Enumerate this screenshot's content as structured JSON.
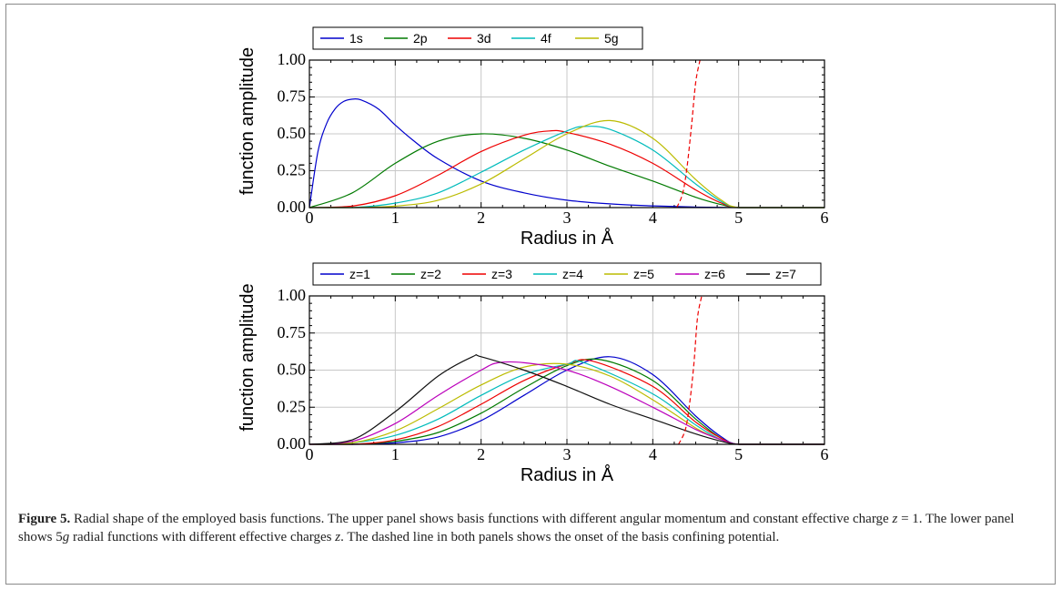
{
  "caption": {
    "label": "Figure 5.",
    "part1": "Radial shape of the employed basis functions. The upper panel shows basis functions with different angular momentum and constant effective charge ",
    "z_var": "z",
    "part2": " = 1. The lower panel shows 5",
    "g_var": "g",
    "part3": " radial functions with different effective charges ",
    "z_var2": "z",
    "part4": ". The dashed line in both panels shows the onset of the basis confining potential."
  },
  "chart_data": [
    {
      "type": "line",
      "xlabel": "Radius in Å",
      "ylabel": "function amplitude",
      "xlim": [
        0,
        6
      ],
      "ylim": [
        0,
        1
      ],
      "xticks": [
        "0",
        "1",
        "2",
        "3",
        "4",
        "5",
        "6"
      ],
      "yticks": [
        "0.00",
        "0.25",
        "0.50",
        "0.75",
        "1.00"
      ],
      "grid": true,
      "legend_position": "top, above plot",
      "series": [
        {
          "name": "1s",
          "color": "#0000cc",
          "x": [
            0,
            0.1,
            0.2,
            0.3,
            0.4,
            0.5,
            0.6,
            0.8,
            1.0,
            1.2,
            1.5,
            2.0,
            2.5,
            3.0,
            3.5,
            4.0,
            4.5,
            5.0,
            5.5,
            6.0
          ],
          "y": [
            0,
            0.38,
            0.57,
            0.67,
            0.72,
            0.735,
            0.73,
            0.67,
            0.56,
            0.46,
            0.33,
            0.18,
            0.1,
            0.05,
            0.025,
            0.012,
            0.004,
            0,
            0,
            0
          ]
        },
        {
          "name": "2p",
          "color": "#007a00",
          "x": [
            0,
            0.5,
            1.0,
            1.5,
            2.0,
            2.5,
            3.0,
            3.5,
            4.0,
            4.5,
            4.8,
            5.0,
            5.5,
            6.0
          ],
          "y": [
            0,
            0.1,
            0.3,
            0.45,
            0.5,
            0.47,
            0.39,
            0.28,
            0.18,
            0.07,
            0.02,
            0,
            0,
            0
          ]
        },
        {
          "name": "3d",
          "color": "#ee0000",
          "x": [
            0,
            0.5,
            1.0,
            1.5,
            2.0,
            2.5,
            2.8,
            3.0,
            3.5,
            4.0,
            4.5,
            4.8,
            5.0,
            5.5,
            6.0
          ],
          "y": [
            0,
            0.01,
            0.08,
            0.22,
            0.38,
            0.49,
            0.52,
            0.51,
            0.43,
            0.3,
            0.12,
            0.03,
            0,
            0,
            0
          ]
        },
        {
          "name": "4f",
          "color": "#00bbbb",
          "x": [
            0,
            0.5,
            1.0,
            1.5,
            2.0,
            2.5,
            3.0,
            3.2,
            3.5,
            4.0,
            4.5,
            4.8,
            5.0,
            5.5,
            6.0
          ],
          "y": [
            0,
            0.0,
            0.03,
            0.1,
            0.24,
            0.39,
            0.52,
            0.55,
            0.53,
            0.39,
            0.16,
            0.04,
            0,
            0,
            0
          ]
        },
        {
          "name": "5g",
          "color": "#bbbb00",
          "x": [
            0,
            0.5,
            1.0,
            1.5,
            2.0,
            2.5,
            3.0,
            3.5,
            4.0,
            4.5,
            4.8,
            5.0,
            5.5,
            6.0
          ],
          "y": [
            0,
            0.0,
            0.01,
            0.05,
            0.16,
            0.33,
            0.5,
            0.59,
            0.47,
            0.19,
            0.05,
            0,
            0,
            0
          ]
        }
      ],
      "dashed_line": {
        "color": "#ee0000",
        "x": [
          4.28,
          4.35,
          4.4,
          4.45,
          4.5,
          4.55
        ],
        "y": [
          0,
          0.1,
          0.28,
          0.55,
          0.85,
          1.0
        ]
      }
    },
    {
      "type": "line",
      "xlabel": "Radius in Å",
      "ylabel": "function amplitude",
      "xlim": [
        0,
        6
      ],
      "ylim": [
        0,
        1
      ],
      "xticks": [
        "0",
        "1",
        "2",
        "3",
        "4",
        "5",
        "6"
      ],
      "yticks": [
        "0.00",
        "0.25",
        "0.50",
        "0.75",
        "1.00"
      ],
      "grid": true,
      "legend_position": "top, above plot",
      "series": [
        {
          "name": "z=1",
          "color": "#0000cc",
          "x": [
            0,
            0.5,
            1.0,
            1.5,
            2.0,
            2.5,
            3.0,
            3.5,
            4.0,
            4.5,
            4.8,
            5.0,
            5.5,
            6.0
          ],
          "y": [
            0,
            0.0,
            0.01,
            0.05,
            0.16,
            0.33,
            0.5,
            0.59,
            0.47,
            0.19,
            0.05,
            0,
            0,
            0
          ]
        },
        {
          "name": "z=2",
          "color": "#007a00",
          "x": [
            0,
            0.5,
            1.0,
            1.5,
            2.0,
            2.5,
            3.0,
            3.4,
            4.0,
            4.5,
            4.8,
            5.0,
            5.5,
            6.0
          ],
          "y": [
            0,
            0.0,
            0.02,
            0.08,
            0.21,
            0.38,
            0.53,
            0.57,
            0.43,
            0.17,
            0.04,
            0,
            0,
            0
          ]
        },
        {
          "name": "z=3",
          "color": "#ee0000",
          "x": [
            0,
            0.5,
            1.0,
            1.5,
            2.0,
            2.5,
            3.0,
            3.3,
            4.0,
            4.5,
            4.8,
            5.0,
            5.5,
            6.0
          ],
          "y": [
            0,
            0.0,
            0.03,
            0.12,
            0.27,
            0.43,
            0.54,
            0.56,
            0.39,
            0.15,
            0.04,
            0,
            0,
            0
          ]
        },
        {
          "name": "z=4",
          "color": "#00bbbb",
          "x": [
            0,
            0.5,
            1.0,
            1.5,
            2.0,
            2.5,
            3.0,
            3.2,
            4.0,
            4.5,
            4.8,
            5.0,
            5.5,
            6.0
          ],
          "y": [
            0,
            0.01,
            0.06,
            0.17,
            0.33,
            0.47,
            0.54,
            0.55,
            0.34,
            0.13,
            0.03,
            0,
            0,
            0
          ]
        },
        {
          "name": "z=5",
          "color": "#bbbb00",
          "x": [
            0,
            0.5,
            1.0,
            1.5,
            2.0,
            2.5,
            3.0,
            3.5,
            4.0,
            4.5,
            4.8,
            5.0,
            5.5,
            6.0
          ],
          "y": [
            0,
            0.01,
            0.09,
            0.24,
            0.4,
            0.52,
            0.54,
            0.46,
            0.3,
            0.11,
            0.03,
            0,
            0,
            0
          ]
        },
        {
          "name": "z=6",
          "color": "#bb00bb",
          "x": [
            0,
            0.5,
            1.0,
            1.5,
            2.0,
            2.2,
            2.5,
            3.0,
            3.5,
            4.0,
            4.5,
            4.8,
            5.0,
            5.5,
            6.0
          ],
          "y": [
            0,
            0.02,
            0.14,
            0.33,
            0.5,
            0.55,
            0.55,
            0.5,
            0.39,
            0.25,
            0.1,
            0.03,
            0,
            0,
            0
          ]
        },
        {
          "name": "z=7",
          "color": "#111111",
          "x": [
            0,
            0.5,
            1.0,
            1.5,
            1.9,
            2.0,
            2.5,
            3.0,
            3.5,
            4.0,
            4.5,
            4.8,
            5.0,
            5.5,
            6.0
          ],
          "y": [
            0,
            0.03,
            0.22,
            0.46,
            0.59,
            0.59,
            0.5,
            0.39,
            0.27,
            0.17,
            0.07,
            0.02,
            0,
            0,
            0
          ]
        }
      ],
      "dashed_line": {
        "color": "#ee0000",
        "x": [
          4.3,
          4.38,
          4.43,
          4.48,
          4.52,
          4.57
        ],
        "y": [
          0,
          0.1,
          0.28,
          0.55,
          0.85,
          1.0
        ]
      }
    }
  ]
}
